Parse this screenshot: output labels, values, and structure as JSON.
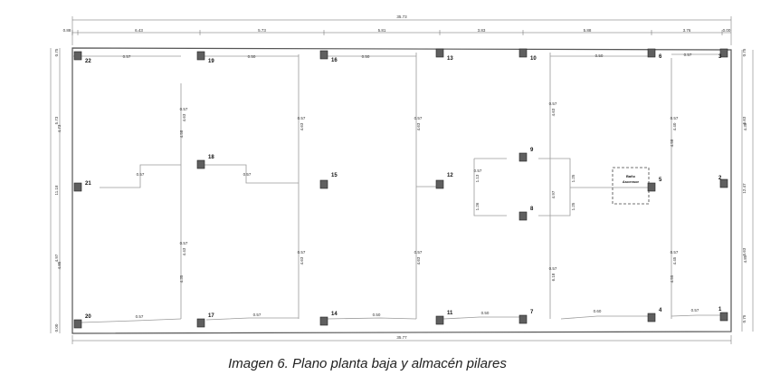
{
  "caption": "Imagen 6. Plano planta baja y almacén pilares",
  "plan": {
    "dims_top_total": "35.73",
    "dims_top_segments": [
      "0.88",
      "6.43",
      "5.73",
      "5.81",
      "3.83",
      "5.88",
      "3.76",
      "0.00"
    ],
    "dims_bottom_total": "35.77",
    "dims_left": [
      "0.75",
      "5.73",
      "11.18",
      "4.97",
      "0.00"
    ],
    "dims_right": [
      "0.75",
      "5.63",
      "12.47",
      "5.63",
      "0.75"
    ],
    "room_label": [
      "Baño",
      "Ascensor"
    ],
    "room_dims": [
      "1.98",
      "1.88"
    ],
    "pillars": [
      "22",
      "19",
      "16",
      "13",
      "10",
      "6",
      "3",
      "21",
      "18",
      "15",
      "12",
      "9",
      "5",
      "2",
      "8",
      "20",
      "17",
      "14",
      "11",
      "7",
      "4",
      "1"
    ],
    "beam_labels": [
      "0.57",
      "0.50",
      "0.50",
      "0.50",
      "0.57",
      "0.57",
      "0.57",
      "0.57",
      "0.57",
      "0.50",
      "0.50",
      "0.60",
      "0.57",
      "0.57",
      "0.57",
      "0.57",
      "0.57",
      "0.57",
      "0.57",
      "0.57",
      "0.57",
      "0.57",
      "0.57",
      "0.57"
    ],
    "bay_dims": [
      "4.73",
      "4.63",
      "4.63",
      "4.63",
      "4.63",
      "4.40",
      "4.38",
      "4.85",
      "4.43",
      "4.63",
      "4.63",
      "6.18",
      "4.45",
      "4.85",
      "1.13",
      "1.26",
      "1.25",
      "1.25",
      "4.97",
      "4.58",
      "4.35",
      "4.58",
      "4.55"
    ]
  }
}
